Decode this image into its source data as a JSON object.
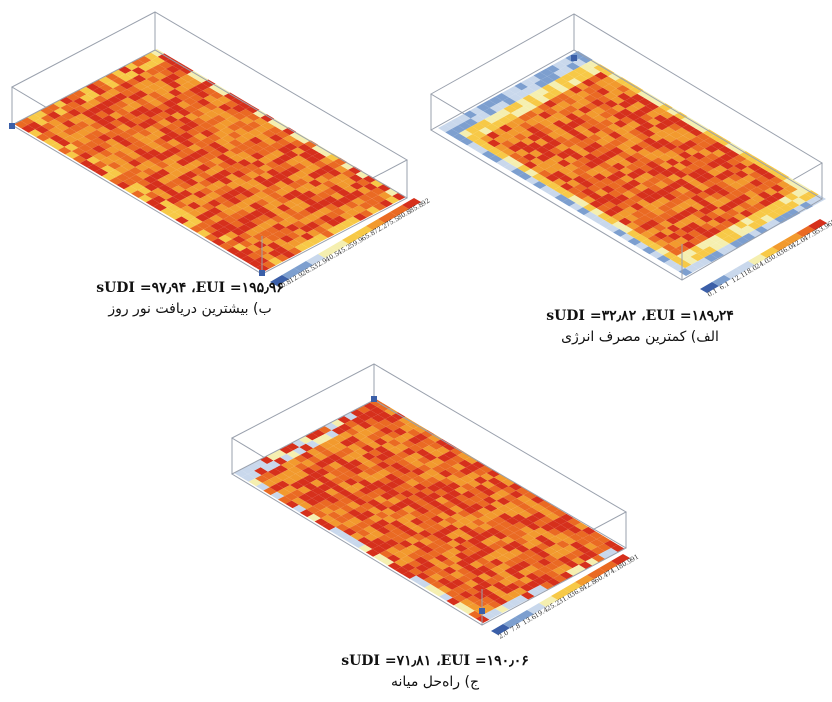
{
  "panels": [
    {
      "id": "b",
      "metrics_text": "sUDI =۹۷٫۹۴ ،EUI =۱۹۵٫۹۶",
      "label": "ب) بیشترین دریافت نور روز",
      "legend_ticks": [
        "92",
        "85.8",
        "80.8",
        "75.5",
        "72.2",
        "65.8",
        "59.9",
        "45.2",
        "40.5",
        "32.9",
        "26.5",
        "12.9",
        "20.8"
      ],
      "pattern": "high"
    },
    {
      "id": "alef",
      "metrics_text": "sUDI =۳۲٫۸۲ ،EUI =۱۸۹٫۲۴",
      "label": "الف) کمترین مصرف انرژی",
      "legend_ticks": [
        "65",
        "53.9",
        "47.9",
        "42.0",
        "36.0",
        "30.0",
        "24.0",
        "18.0",
        "12.1",
        "6.1",
        "0.1"
      ],
      "pattern": "low"
    },
    {
      "id": "jim",
      "metrics_text": "sUDI =۷۱٫۸۱ ،EUI =۱۹۰٫۰۶",
      "label": "ج) راه‌حل میانه",
      "legend_ticks": [
        "91",
        "80.9",
        "74.1",
        "60.4",
        "42.8",
        "36.8",
        "31.0",
        "25.2",
        "19.4",
        "13.6",
        "7.8",
        "2.0"
      ],
      "pattern": "mid"
    }
  ],
  "colors": {
    "box_edge": "#9aa1ad",
    "corner_marker": "#3b5fa8",
    "scale": [
      "#3b5fa8",
      "#7d9fcf",
      "#c9d8ec",
      "#f5efb0",
      "#f7c947",
      "#f29a2e",
      "#ea6a23",
      "#d6301c"
    ]
  }
}
